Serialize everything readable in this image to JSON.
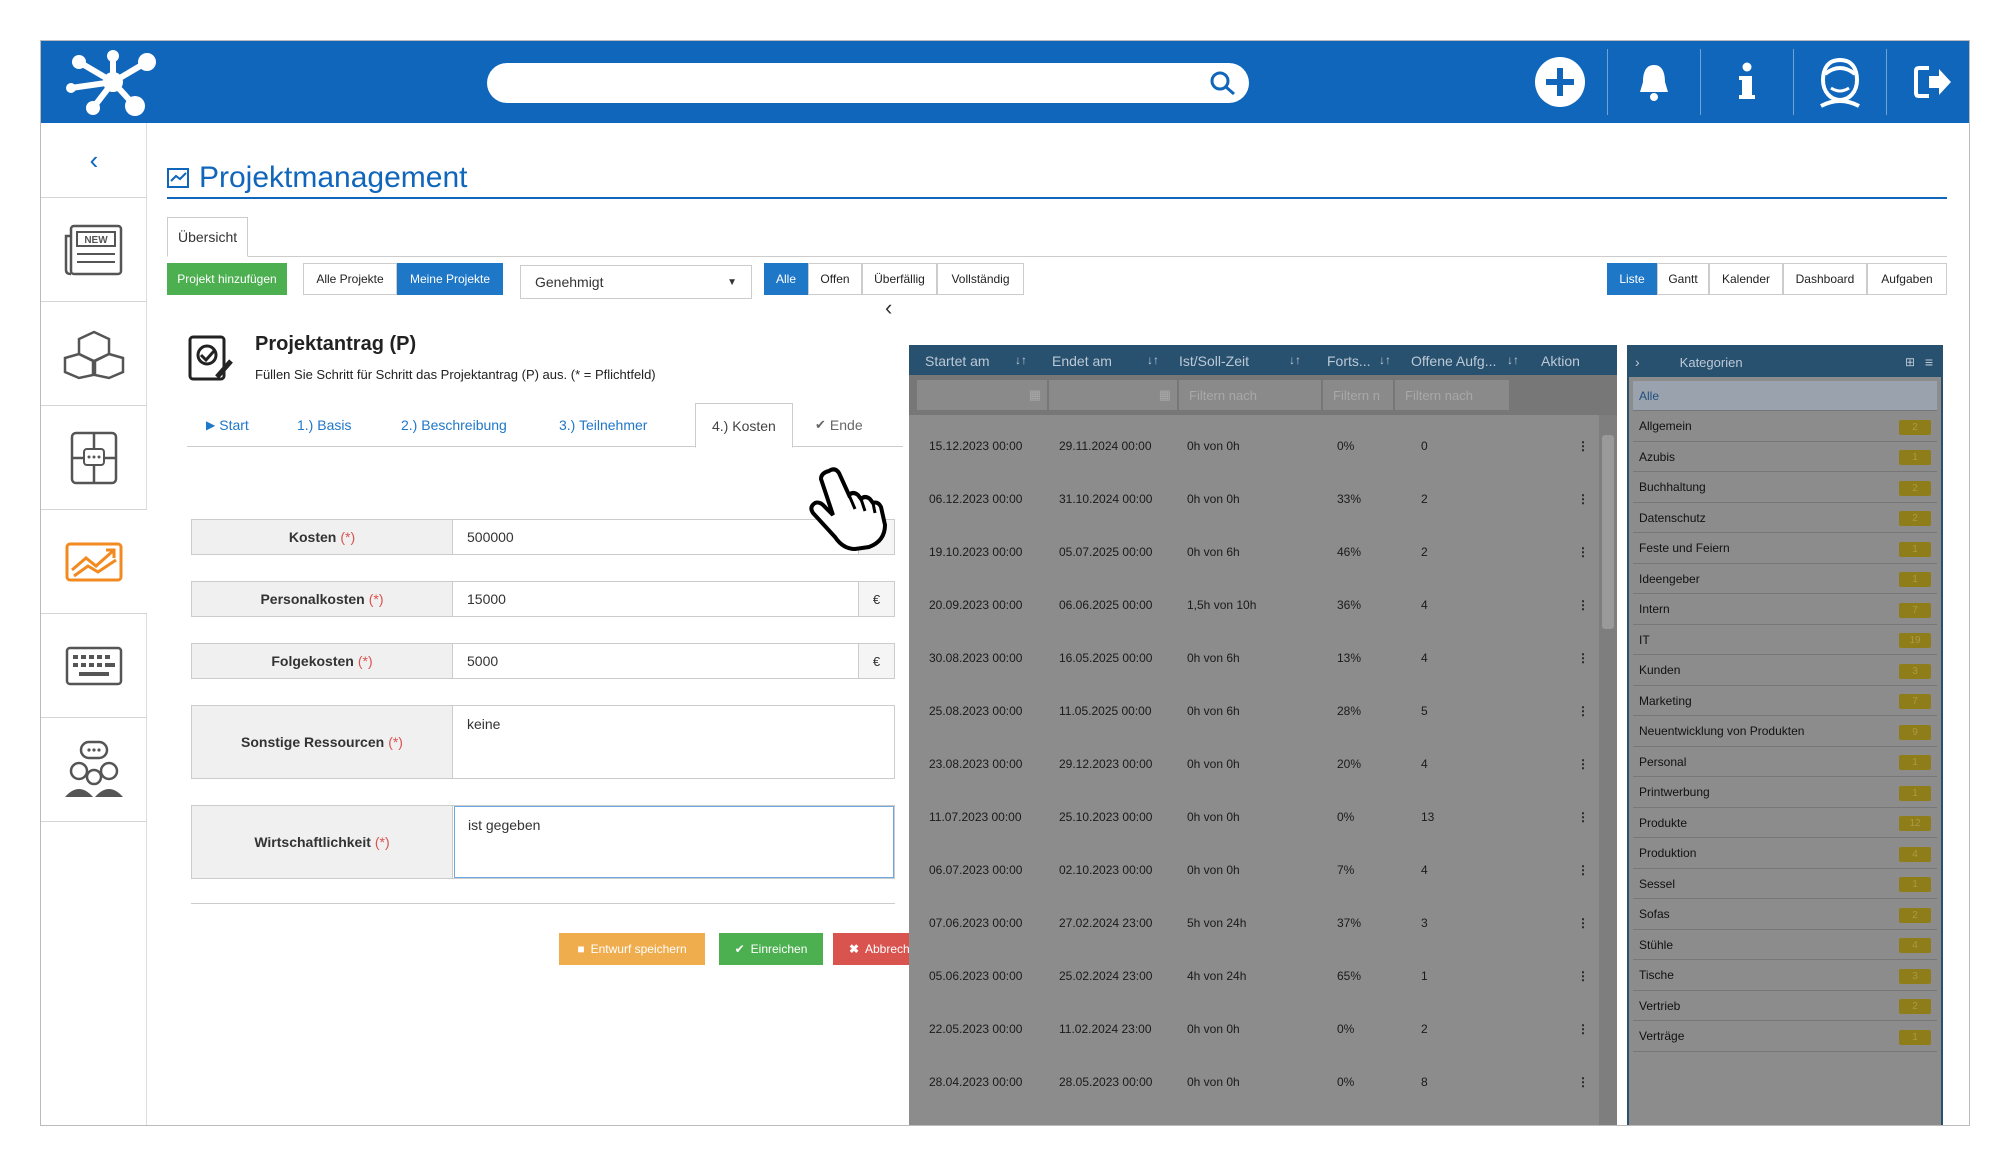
{
  "header": {
    "search_placeholder": ""
  },
  "page": {
    "title": "Projektmanagement"
  },
  "tabs": {
    "overview": "Übersicht"
  },
  "toolbar": {
    "add_project": "Projekt hinzufügen",
    "all_projects": "Alle Projekte",
    "my_projects": "Meine Projekte",
    "status_select": "Genehmigt",
    "filters": [
      "Alle",
      "Offen",
      "Überfällig",
      "Vollständig"
    ],
    "views": [
      "Liste",
      "Gantt",
      "Kalender",
      "Dashboard",
      "Aufgaben"
    ]
  },
  "form": {
    "title": "Projektantrag (P)",
    "subtitle": "Füllen Sie Schritt für Schritt das Projektantrag (P) aus. (* = Pflichtfeld)",
    "steps": [
      "Start",
      "1.) Basis",
      "2.) Beschreibung",
      "3.) Teilnehmer",
      "4.) Kosten",
      "Ende"
    ],
    "required_mark": "(*)",
    "currency": "€",
    "fields": [
      {
        "label": "Kosten",
        "value": "500000"
      },
      {
        "label": "Personalkosten",
        "value": "15000"
      },
      {
        "label": "Folgekosten",
        "value": "5000"
      },
      {
        "label": "Sonstige Ressourcen",
        "value": "keine"
      },
      {
        "label": "Wirtschaftlichkeit",
        "value": "ist gegeben"
      }
    ],
    "buttons": {
      "save": "Entwurf speichern",
      "submit": "Einreichen",
      "cancel": "Abbrechen"
    }
  },
  "table": {
    "columns": [
      "Startet am",
      "Endet am",
      "Ist/Soll-Zeit",
      "Forts...",
      "Offene Aufg...",
      "Aktion"
    ],
    "filter_placeholders": [
      "Filtern nach",
      "Filtern n",
      "Filtern nach"
    ],
    "rows": [
      [
        "15.12.2023 00:00",
        "29.11.2024 00:00",
        "0h von 0h",
        "0%",
        "0"
      ],
      [
        "06.12.2023 00:00",
        "31.10.2024 00:00",
        "0h von 0h",
        "33%",
        "2"
      ],
      [
        "19.10.2023 00:00",
        "05.07.2025 00:00",
        "0h von 6h",
        "46%",
        "2"
      ],
      [
        "20.09.2023 00:00",
        "06.06.2025 00:00",
        "1,5h von 10h",
        "36%",
        "4"
      ],
      [
        "30.08.2023 00:00",
        "16.05.2025 00:00",
        "0h von 6h",
        "13%",
        "4"
      ],
      [
        "25.08.2023 00:00",
        "11.05.2025 00:00",
        "0h von 6h",
        "28%",
        "5"
      ],
      [
        "23.08.2023 00:00",
        "29.12.2023 00:00",
        "0h von 0h",
        "20%",
        "4"
      ],
      [
        "11.07.2023 00:00",
        "25.10.2023 00:00",
        "0h von 0h",
        "0%",
        "13"
      ],
      [
        "06.07.2023 00:00",
        "02.10.2023 00:00",
        "0h von 0h",
        "7%",
        "4"
      ],
      [
        "07.06.2023 00:00",
        "27.02.2024 23:00",
        "5h von 24h",
        "37%",
        "3"
      ],
      [
        "05.06.2023 00:00",
        "25.02.2024 23:00",
        "4h von 24h",
        "65%",
        "1"
      ],
      [
        "22.05.2023 00:00",
        "11.02.2024 23:00",
        "0h von 0h",
        "0%",
        "2"
      ],
      [
        "28.04.2023 00:00",
        "28.05.2023 00:00",
        "0h von 0h",
        "0%",
        "8"
      ]
    ]
  },
  "categories": {
    "title": "Kategorien",
    "items": [
      {
        "name": "Alle",
        "count": ""
      },
      {
        "name": "Allgemein",
        "count": "2"
      },
      {
        "name": "Azubis",
        "count": "1"
      },
      {
        "name": "Buchhaltung",
        "count": "2"
      },
      {
        "name": "Datenschutz",
        "count": "2"
      },
      {
        "name": "Feste und Feiern",
        "count": "1"
      },
      {
        "name": "Ideengeber",
        "count": "1"
      },
      {
        "name": "Intern",
        "count": "7"
      },
      {
        "name": "IT",
        "count": "19"
      },
      {
        "name": "Kunden",
        "count": "3"
      },
      {
        "name": "Marketing",
        "count": "7"
      },
      {
        "name": "Neuentwicklung von Produkten",
        "count": "9"
      },
      {
        "name": "Personal",
        "count": "1"
      },
      {
        "name": "Printwerbung",
        "count": "1"
      },
      {
        "name": "Produkte",
        "count": "12"
      },
      {
        "name": "Produktion",
        "count": "4"
      },
      {
        "name": "Sessel",
        "count": "1"
      },
      {
        "name": "Sofas",
        "count": "2"
      },
      {
        "name": "Stühle",
        "count": "4"
      },
      {
        "name": "Tische",
        "count": "3"
      },
      {
        "name": "Vertrieb",
        "count": "2"
      },
      {
        "name": "Verträge",
        "count": "1"
      }
    ]
  },
  "colors": {
    "primary": "#0f66bb",
    "green": "#4caf50",
    "orange": "#f0ad4e",
    "red": "#d9534f",
    "accent_orange": "#f28a1f"
  }
}
